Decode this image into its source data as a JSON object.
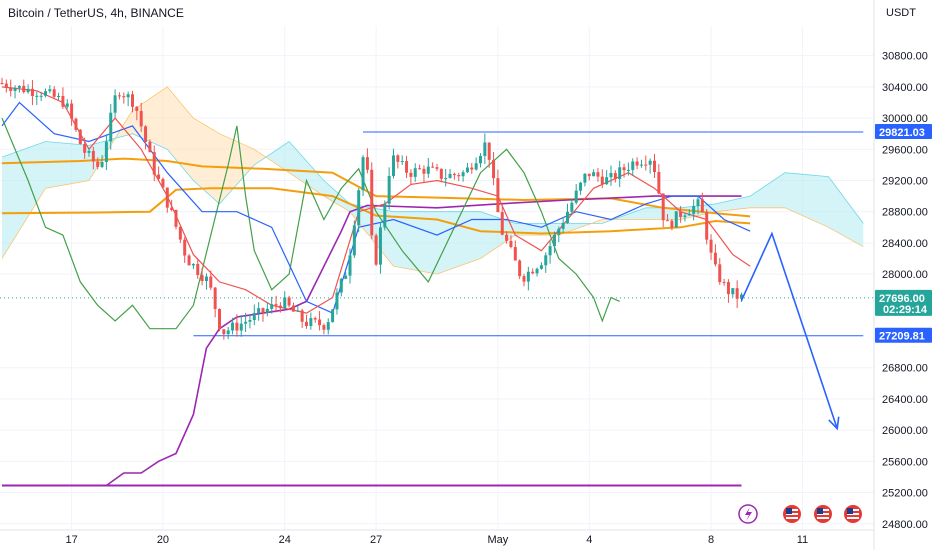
{
  "chart_data": {
    "type": "candlestick",
    "title": "Bitcoin / TetherUS, 4h, BINANCE",
    "currency_label": "USDT",
    "colors": {
      "up": "#26a69a",
      "down": "#ef5350",
      "tenkan": "#ef5350",
      "kijun": "#2962ff",
      "chikou": "#43a047",
      "cloud_bull": "#b2ebf2",
      "cloud_bear": "#ffe0b2",
      "orange_line": "#f59e0b",
      "purple_line": "#9c27b0",
      "level_line": "#2962ff",
      "projection": "#2962ff",
      "grid": "#f0f3fa",
      "axis_text": "#131722"
    },
    "y_range": [
      24720,
      31180
    ],
    "y_ticks": [
      {
        "value": 30800,
        "label": "30800.00"
      },
      {
        "value": 30400,
        "label": "30400.00"
      },
      {
        "value": 30000,
        "label": "30000.00"
      },
      {
        "value": 29600,
        "label": "29600.00"
      },
      {
        "value": 29200,
        "label": "29200.00"
      },
      {
        "value": 28800,
        "label": "28800.00"
      },
      {
        "value": 28400,
        "label": "28400.00"
      },
      {
        "value": 28000,
        "label": "28000.00"
      },
      {
        "value": 26800,
        "label": "26800.00"
      },
      {
        "value": 26400,
        "label": "26400.00"
      },
      {
        "value": 26000,
        "label": "26000.00"
      },
      {
        "value": 25600,
        "label": "25600.00"
      },
      {
        "value": 25200,
        "label": "25200.00"
      },
      {
        "value": 24800,
        "label": "24800.00"
      }
    ],
    "x_range": [
      0,
      172
    ],
    "x_ticks": [
      {
        "index": 16,
        "label": "17"
      },
      {
        "index": 37,
        "label": "20"
      },
      {
        "index": 65,
        "label": "24"
      },
      {
        "index": 86,
        "label": "27"
      },
      {
        "index": 114,
        "label": "May"
      },
      {
        "index": 135,
        "label": "4"
      },
      {
        "index": 163,
        "label": "8"
      },
      {
        "index": 184,
        "label": "11"
      }
    ],
    "price_tags": [
      {
        "value": 29821.03,
        "label": "29821.03",
        "color": "#2962ff"
      },
      {
        "value": 27696.0,
        "label": "27696.00",
        "countdown": "02:29:14",
        "color": "#26a69a"
      },
      {
        "value": 27209.81,
        "label": "27209.81",
        "color": "#2962ff"
      }
    ],
    "levels": [
      {
        "value": 29821.03,
        "from_index": 83,
        "to_index": 198,
        "color": "#2962ff"
      },
      {
        "value": 27209.81,
        "from_index": 44,
        "to_index": 198,
        "color": "#2962ff"
      },
      {
        "value": 25290,
        "from_index": 0,
        "to_index": 170,
        "color": "#9c27b0"
      }
    ],
    "projection": [
      [
        170,
        27660
      ],
      [
        177,
        28520
      ],
      [
        192,
        26020
      ]
    ],
    "candle_points": [
      [
        0,
        30450
      ],
      [
        5,
        30380
      ],
      [
        10,
        30330
      ],
      [
        15,
        30200
      ],
      [
        19,
        29600
      ],
      [
        23,
        29350
      ],
      [
        27,
        30380
      ],
      [
        31,
        30200
      ],
      [
        35,
        29400
      ],
      [
        39,
        28850
      ],
      [
        43,
        28200
      ],
      [
        48,
        27900
      ],
      [
        51,
        27250
      ],
      [
        55,
        27350
      ],
      [
        60,
        27500
      ],
      [
        65,
        27650
      ],
      [
        70,
        27380
      ],
      [
        75,
        27350
      ],
      [
        80,
        28100
      ],
      [
        84,
        29700
      ],
      [
        86,
        28000
      ],
      [
        90,
        29500
      ],
      [
        94,
        29300
      ],
      [
        98,
        29350
      ],
      [
        102,
        29250
      ],
      [
        107,
        29300
      ],
      [
        112,
        29700
      ],
      [
        115,
        28600
      ],
      [
        120,
        27950
      ],
      [
        125,
        28200
      ],
      [
        130,
        28750
      ],
      [
        135,
        29300
      ],
      [
        140,
        29200
      ],
      [
        146,
        29450
      ],
      [
        150,
        29500
      ],
      [
        153,
        28600
      ],
      [
        157,
        28800
      ],
      [
        161,
        28900
      ],
      [
        164,
        28100
      ],
      [
        167,
        27800
      ],
      [
        170,
        27696
      ]
    ],
    "tenkan": [
      [
        0,
        30400
      ],
      [
        8,
        30350
      ],
      [
        14,
        30200
      ],
      [
        20,
        29600
      ],
      [
        26,
        30000
      ],
      [
        32,
        29600
      ],
      [
        38,
        29000
      ],
      [
        44,
        28250
      ],
      [
        50,
        27900
      ],
      [
        56,
        27800
      ],
      [
        62,
        27600
      ],
      [
        70,
        27500
      ],
      [
        76,
        27700
      ],
      [
        82,
        28800
      ],
      [
        88,
        28900
      ],
      [
        94,
        29150
      ],
      [
        100,
        29200
      ],
      [
        108,
        29100
      ],
      [
        114,
        29000
      ],
      [
        118,
        28500
      ],
      [
        124,
        28300
      ],
      [
        130,
        28700
      ],
      [
        136,
        29100
      ],
      [
        144,
        29300
      ],
      [
        150,
        29100
      ],
      [
        156,
        28800
      ],
      [
        162,
        28700
      ],
      [
        168,
        28250
      ],
      [
        172,
        28100
      ]
    ],
    "kijun": [
      [
        0,
        29900
      ],
      [
        4,
        30200
      ],
      [
        12,
        29800
      ],
      [
        20,
        29700
      ],
      [
        30,
        29900
      ],
      [
        38,
        29300
      ],
      [
        46,
        28800
      ],
      [
        54,
        28800
      ],
      [
        62,
        28600
      ],
      [
        70,
        27650
      ],
      [
        76,
        27500
      ],
      [
        82,
        28600
      ],
      [
        90,
        28700
      ],
      [
        100,
        28500
      ],
      [
        108,
        28700
      ],
      [
        116,
        28700
      ],
      [
        124,
        28600
      ],
      [
        132,
        28800
      ],
      [
        140,
        28700
      ],
      [
        148,
        28900
      ],
      [
        154,
        29000
      ],
      [
        160,
        29000
      ],
      [
        166,
        28700
      ],
      [
        172,
        28550
      ]
    ],
    "chikou": [
      [
        0,
        30000
      ],
      [
        6,
        29200
      ],
      [
        10,
        28600
      ],
      [
        14,
        28500
      ],
      [
        18,
        27900
      ],
      [
        22,
        27600
      ],
      [
        26,
        27400
      ],
      [
        30,
        27600
      ],
      [
        34,
        27300
      ],
      [
        40,
        27300
      ],
      [
        44,
        27600
      ],
      [
        48,
        28500
      ],
      [
        52,
        29400
      ],
      [
        54,
        29900
      ],
      [
        56,
        29000
      ],
      [
        58,
        28300
      ],
      [
        62,
        27800
      ],
      [
        66,
        28000
      ],
      [
        70,
        29200
      ],
      [
        74,
        28700
      ],
      [
        78,
        29100
      ],
      [
        82,
        29350
      ],
      [
        86,
        28800
      ],
      [
        92,
        28300
      ],
      [
        98,
        27900
      ],
      [
        104,
        28600
      ],
      [
        110,
        29300
      ],
      [
        116,
        29600
      ],
      [
        120,
        29300
      ],
      [
        124,
        28800
      ],
      [
        128,
        28200
      ],
      [
        132,
        28000
      ],
      [
        136,
        27700
      ],
      [
        138,
        27400
      ],
      [
        140,
        27700
      ],
      [
        142,
        27650
      ]
    ],
    "purple_curve": [
      [
        0,
        25290
      ],
      [
        24,
        25290
      ],
      [
        28,
        25450
      ],
      [
        32,
        25450
      ],
      [
        36,
        25600
      ],
      [
        40,
        25700
      ],
      [
        44,
        26200
      ],
      [
        47,
        27050
      ],
      [
        50,
        27300
      ],
      [
        54,
        27450
      ],
      [
        60,
        27500
      ],
      [
        66,
        27550
      ],
      [
        70,
        27650
      ],
      [
        74,
        28100
      ],
      [
        78,
        28550
      ],
      [
        80,
        28800
      ],
      [
        84,
        28880
      ],
      [
        100,
        28850
      ],
      [
        114,
        28900
      ],
      [
        130,
        28950
      ],
      [
        150,
        29000
      ],
      [
        170,
        29000
      ]
    ],
    "orange_lines": [
      [
        [
          0,
          29420
        ],
        [
          18,
          29450
        ],
        [
          28,
          29480
        ],
        [
          38,
          29450
        ],
        [
          46,
          29380
        ],
        [
          60,
          29350
        ],
        [
          76,
          29300
        ],
        [
          86,
          29000
        ],
        [
          100,
          28980
        ],
        [
          120,
          28950
        ],
        [
          140,
          28970
        ],
        [
          152,
          28850
        ],
        [
          164,
          28780
        ],
        [
          172,
          28740
        ]
      ],
      [
        [
          0,
          28780
        ],
        [
          22,
          28790
        ],
        [
          34,
          28800
        ],
        [
          40,
          29080
        ],
        [
          48,
          29100
        ],
        [
          62,
          29100
        ],
        [
          76,
          29000
        ],
        [
          86,
          28750
        ],
        [
          100,
          28700
        ],
        [
          110,
          28550
        ],
        [
          124,
          28520
        ],
        [
          140,
          28550
        ],
        [
          156,
          28600
        ],
        [
          164,
          28680
        ],
        [
          172,
          28650
        ]
      ]
    ],
    "cloud": {
      "span_a": [
        [
          0,
          29500
        ],
        [
          10,
          29700
        ],
        [
          20,
          29650
        ],
        [
          30,
          29800
        ],
        [
          38,
          29600
        ],
        [
          44,
          29200
        ],
        [
          50,
          28900
        ],
        [
          58,
          29400
        ],
        [
          66,
          29700
        ],
        [
          74,
          29200
        ],
        [
          80,
          28900
        ],
        [
          90,
          28800
        ],
        [
          100,
          28800
        ],
        [
          110,
          28800
        ],
        [
          118,
          28650
        ],
        [
          128,
          28650
        ],
        [
          138,
          28650
        ],
        [
          148,
          28850
        ],
        [
          156,
          28850
        ],
        [
          164,
          28900
        ],
        [
          172,
          29000
        ],
        [
          180,
          29300
        ],
        [
          190,
          29250
        ],
        [
          198,
          28650
        ]
      ],
      "span_b": [
        [
          0,
          28200
        ],
        [
          10,
          29100
        ],
        [
          20,
          29200
        ],
        [
          30,
          30100
        ],
        [
          38,
          30400
        ],
        [
          44,
          30000
        ],
        [
          50,
          29800
        ],
        [
          58,
          29600
        ],
        [
          66,
          29300
        ],
        [
          74,
          29000
        ],
        [
          80,
          28800
        ],
        [
          90,
          28100
        ],
        [
          100,
          28000
        ],
        [
          110,
          28200
        ],
        [
          118,
          28500
        ],
        [
          128,
          28500
        ],
        [
          138,
          28700
        ],
        [
          148,
          28700
        ],
        [
          156,
          28700
        ],
        [
          164,
          28800
        ],
        [
          172,
          28850
        ],
        [
          180,
          28850
        ],
        [
          190,
          28600
        ],
        [
          198,
          28350
        ]
      ]
    }
  }
}
